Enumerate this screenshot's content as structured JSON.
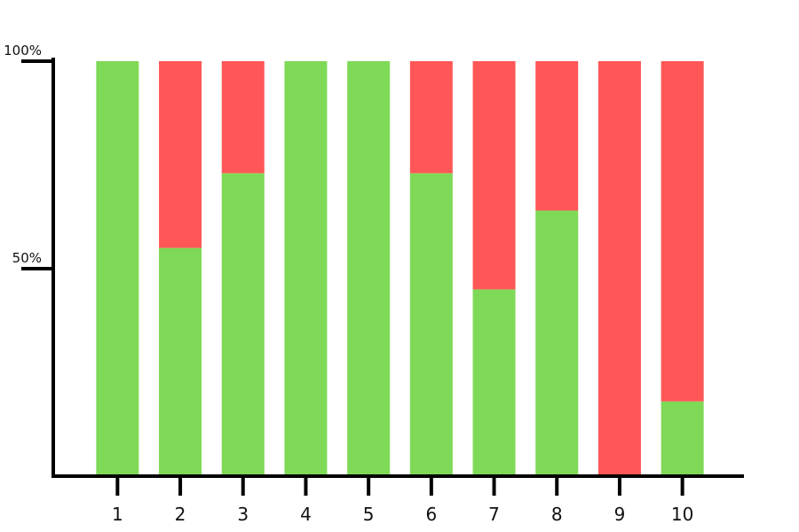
{
  "chart_data": {
    "type": "bar",
    "stacked": true,
    "categories": [
      "1",
      "2",
      "3",
      "4",
      "5",
      "6",
      "7",
      "8",
      "9",
      "10"
    ],
    "series": [
      {
        "color": "#7ed957",
        "values": [
          100,
          55,
          73,
          100,
          100,
          73,
          45,
          64,
          0,
          18
        ]
      },
      {
        "color": "#ff5757",
        "values": [
          0,
          45,
          27,
          0,
          0,
          27,
          55,
          36,
          100,
          82
        ]
      }
    ],
    "ylim": [
      0,
      100
    ],
    "y_ticks": [
      {
        "value": 50,
        "label": "50%"
      },
      {
        "value": 100,
        "label": "100%"
      }
    ],
    "title": "",
    "xlabel": "",
    "ylabel": "",
    "grid": false,
    "legend": "none"
  }
}
